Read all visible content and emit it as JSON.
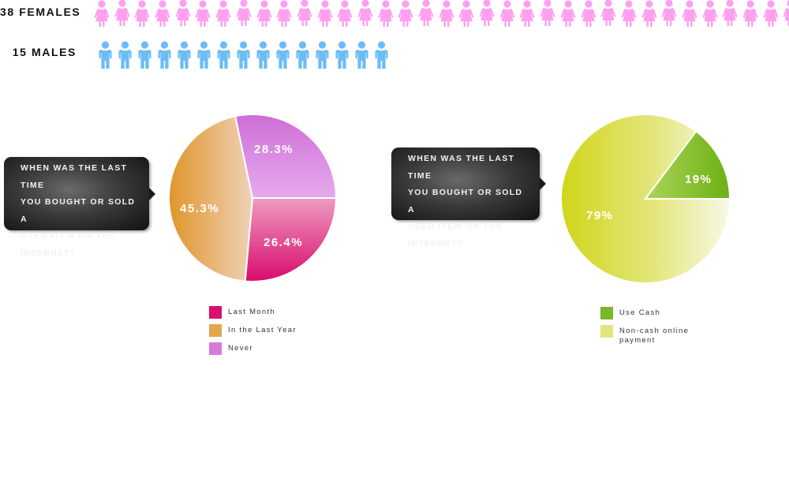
{
  "demographics": {
    "females": {
      "label": "38 FEMALES",
      "count": 38,
      "color": "#ff9ff0"
    },
    "males": {
      "label": "15 MALES",
      "count": 15,
      "color": "#6cbcf6"
    }
  },
  "panels": [
    {
      "question": "WHEN WAS THE LAST TIME YOU BOUGHT OR SOLD A USED ITEM ON THE INTERNET?",
      "question_lines": [
        "WHEN WAS THE LAST TIME",
        "YOU BOUGHT OR SOLD A",
        "USED ITEM ON THE",
        "INTERNET?"
      ],
      "legend": [
        {
          "label": "Last Month",
          "color": "#d9106e"
        },
        {
          "label": "In the Last Year",
          "color": "#e5a54c"
        },
        {
          "label": "Never",
          "color": "#d77ad8"
        }
      ]
    },
    {
      "question": "WHEN WAS THE LAST TIME YOU BOUGHT OR SOLD A USED ITEM ON THE INTERNET?",
      "question_lines": [
        "WHEN WAS THE LAST TIME",
        "YOU BOUGHT OR SOLD A",
        "USED ITEM ON THE",
        "INTERNET?"
      ],
      "legend": [
        {
          "label": "Use Cash",
          "color": "#7ab72a"
        },
        {
          "label": "Non-cash online",
          "label2": "payment",
          "color": "#e3e47f"
        }
      ]
    }
  ],
  "chart_data": [
    {
      "type": "pie",
      "title": "WHEN WAS THE LAST TIME YOU BOUGHT OR SOLD A USED ITEM ON THE INTERNET?",
      "categories": [
        "Last Month",
        "In the Last Year",
        "Never"
      ],
      "values": [
        26.4,
        45.3,
        28.3
      ],
      "labels": [
        "26.4%",
        "45.3%",
        "28.3%"
      ],
      "colors": [
        "#d9106e",
        "#e5a54c",
        "#d77ad8"
      ],
      "legend_position": "bottom"
    },
    {
      "type": "pie",
      "title": "WHEN WAS THE LAST TIME YOU BOUGHT OR SOLD A USED ITEM ON THE INTERNET?",
      "categories": [
        "Use Cash",
        "Non-cash online payment"
      ],
      "values": [
        19,
        79
      ],
      "labels": [
        "19%",
        "79%"
      ],
      "colors": [
        "#7ab72a",
        "#e3e47f"
      ],
      "legend_position": "bottom"
    },
    {
      "type": "pictogram",
      "categories": [
        "Females",
        "Males"
      ],
      "values": [
        38,
        15
      ],
      "labels": [
        "38 FEMALES",
        "15 MALES"
      ]
    }
  ]
}
